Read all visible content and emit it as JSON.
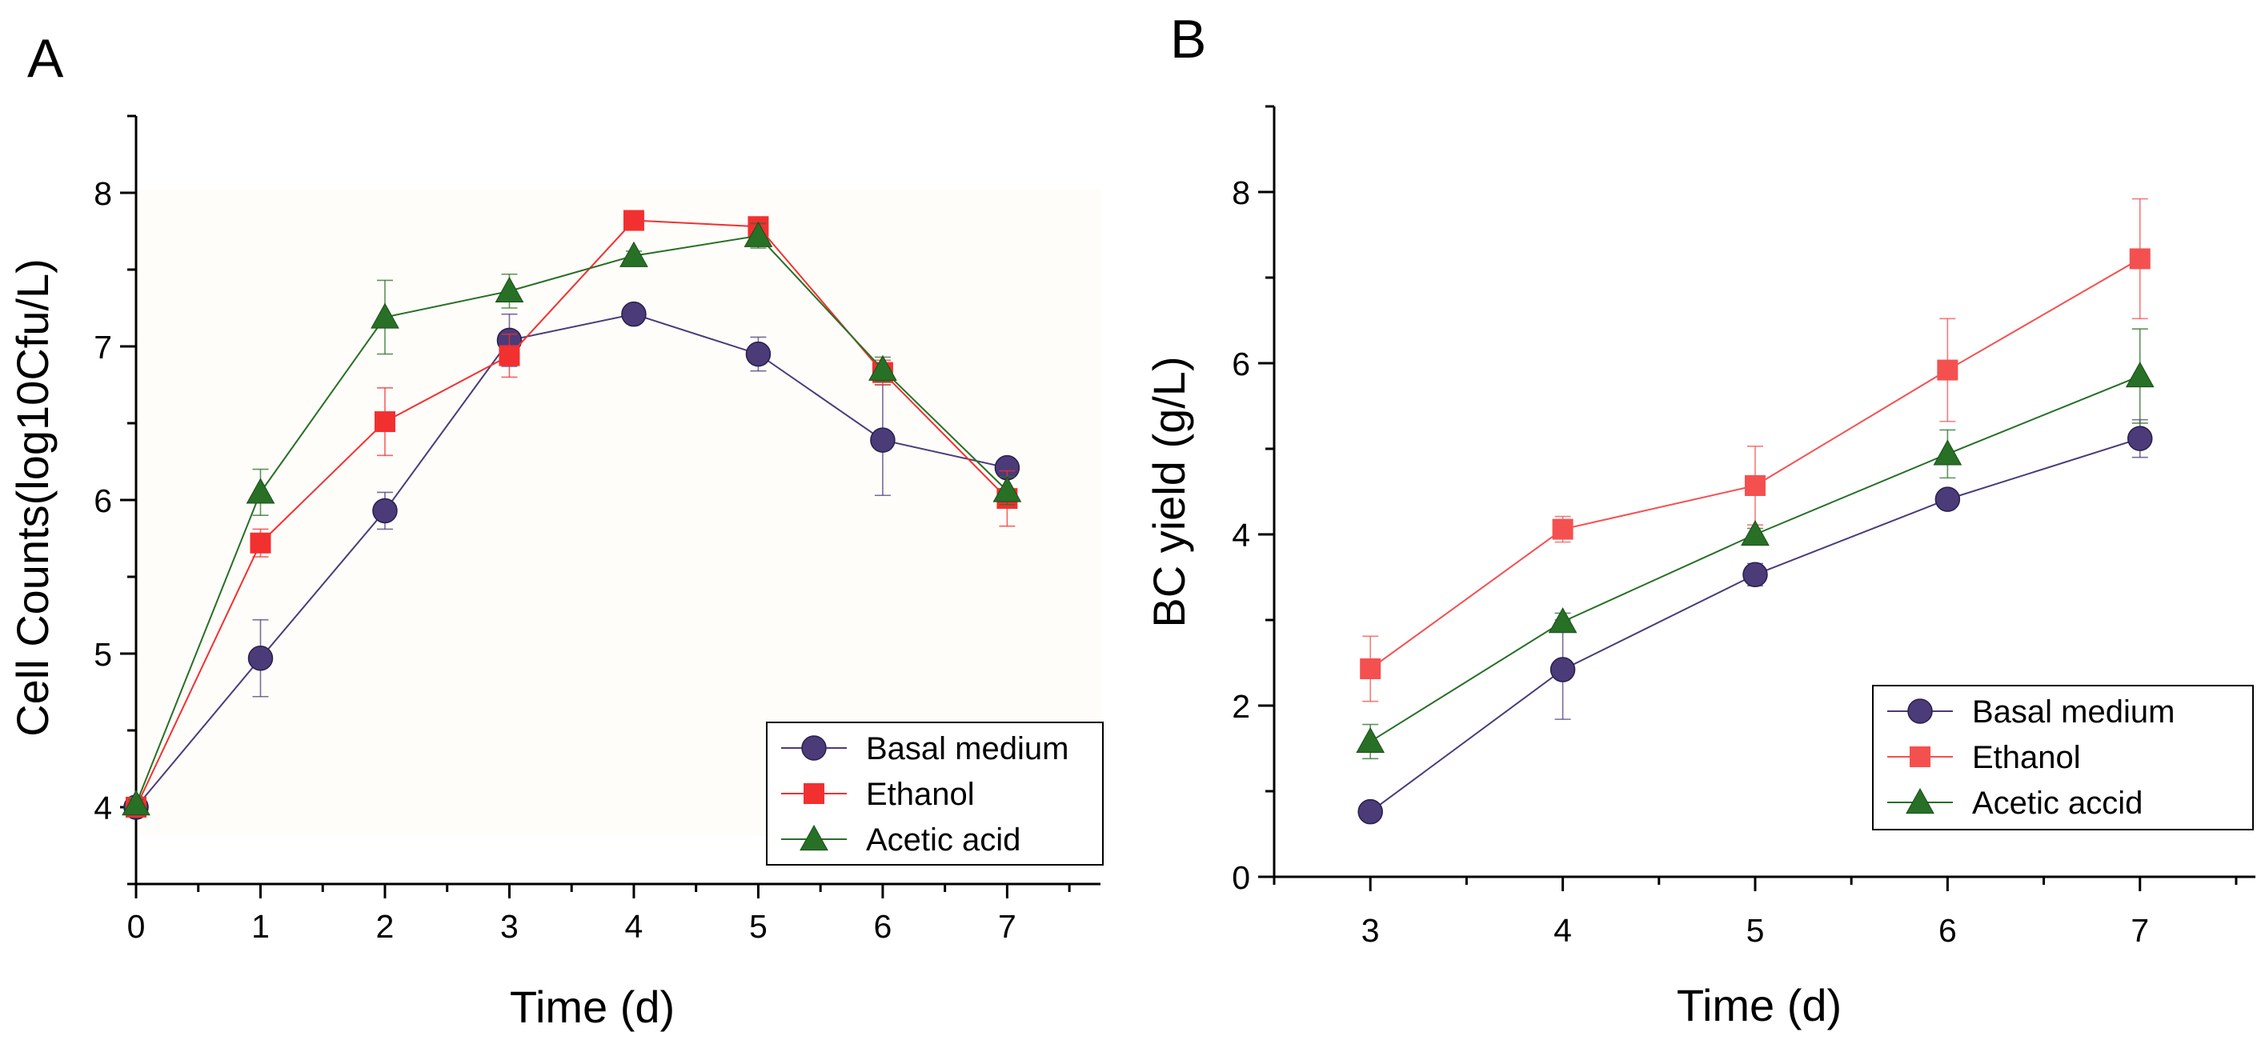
{
  "chart_data": [
    {
      "panel": "A",
      "type": "line",
      "xlabel": "Time (d)",
      "ylabel": "Cell Counts(log10Cfu/L)",
      "xlim": [
        0,
        7.75
      ],
      "ylim": [
        3.5,
        8.5
      ],
      "xticks": [
        0,
        1,
        2,
        3,
        4,
        5,
        6,
        7
      ],
      "yticks": [
        4,
        5,
        6,
        7,
        8
      ],
      "x": [
        0,
        1,
        2,
        3,
        4,
        5,
        6,
        7
      ],
      "legend_position": "bottom-right",
      "series": [
        {
          "name": "Basal medium",
          "marker": "circle",
          "color": "#4b3b78",
          "values": [
            4.0,
            4.97,
            5.93,
            7.04,
            7.21,
            6.95,
            6.39,
            6.21
          ],
          "errors": [
            0.03,
            0.25,
            0.12,
            0.17,
            0.04,
            0.11,
            0.36,
            0.06
          ]
        },
        {
          "name": "Ethanol",
          "marker": "square",
          "color": "#f23030",
          "values": [
            4.0,
            5.72,
            6.51,
            6.94,
            7.82,
            7.78,
            6.83,
            6.01
          ],
          "errors": [
            0.03,
            0.09,
            0.22,
            0.14,
            0.03,
            0.04,
            0.08,
            0.18
          ]
        },
        {
          "name": "Acetic acid",
          "marker": "triangle",
          "color": "#277026",
          "values": [
            4.02,
            6.05,
            7.19,
            7.36,
            7.59,
            7.72,
            6.85,
            6.06
          ],
          "errors": [
            0.03,
            0.15,
            0.24,
            0.11,
            0.03,
            0.08,
            0.08,
            0.09
          ]
        }
      ]
    },
    {
      "panel": "B",
      "type": "line",
      "xlabel": "Time (d)",
      "ylabel": "BC yield (g/L)",
      "xlim": [
        2.5,
        7.6
      ],
      "ylim": [
        0,
        9
      ],
      "xticks": [
        3,
        4,
        5,
        6,
        7
      ],
      "yticks": [
        0,
        2,
        4,
        6,
        8
      ],
      "x": [
        3,
        4,
        5,
        6,
        7
      ],
      "legend_position": "bottom-right",
      "series": [
        {
          "name": "Basal medium",
          "marker": "circle",
          "color": "#4b3b78",
          "values": [
            0.76,
            2.42,
            3.53,
            4.41,
            5.12
          ],
          "errors": [
            0.02,
            0.58,
            0.13,
            0.05,
            0.22
          ]
        },
        {
          "name": "Ethanol",
          "marker": "square",
          "color": "#f55050",
          "values": [
            2.43,
            4.06,
            4.57,
            5.92,
            7.22
          ],
          "errors": [
            0.38,
            0.15,
            0.46,
            0.6,
            0.7
          ]
        },
        {
          "name": "Acetic accid",
          "marker": "triangle",
          "color": "#277026",
          "values": [
            1.58,
            2.98,
            4.0,
            4.94,
            5.85
          ],
          "errors": [
            0.2,
            0.1,
            0.07,
            0.28,
            0.55
          ]
        }
      ]
    }
  ],
  "labels": {
    "panel_a": "A",
    "panel_b": "B"
  }
}
